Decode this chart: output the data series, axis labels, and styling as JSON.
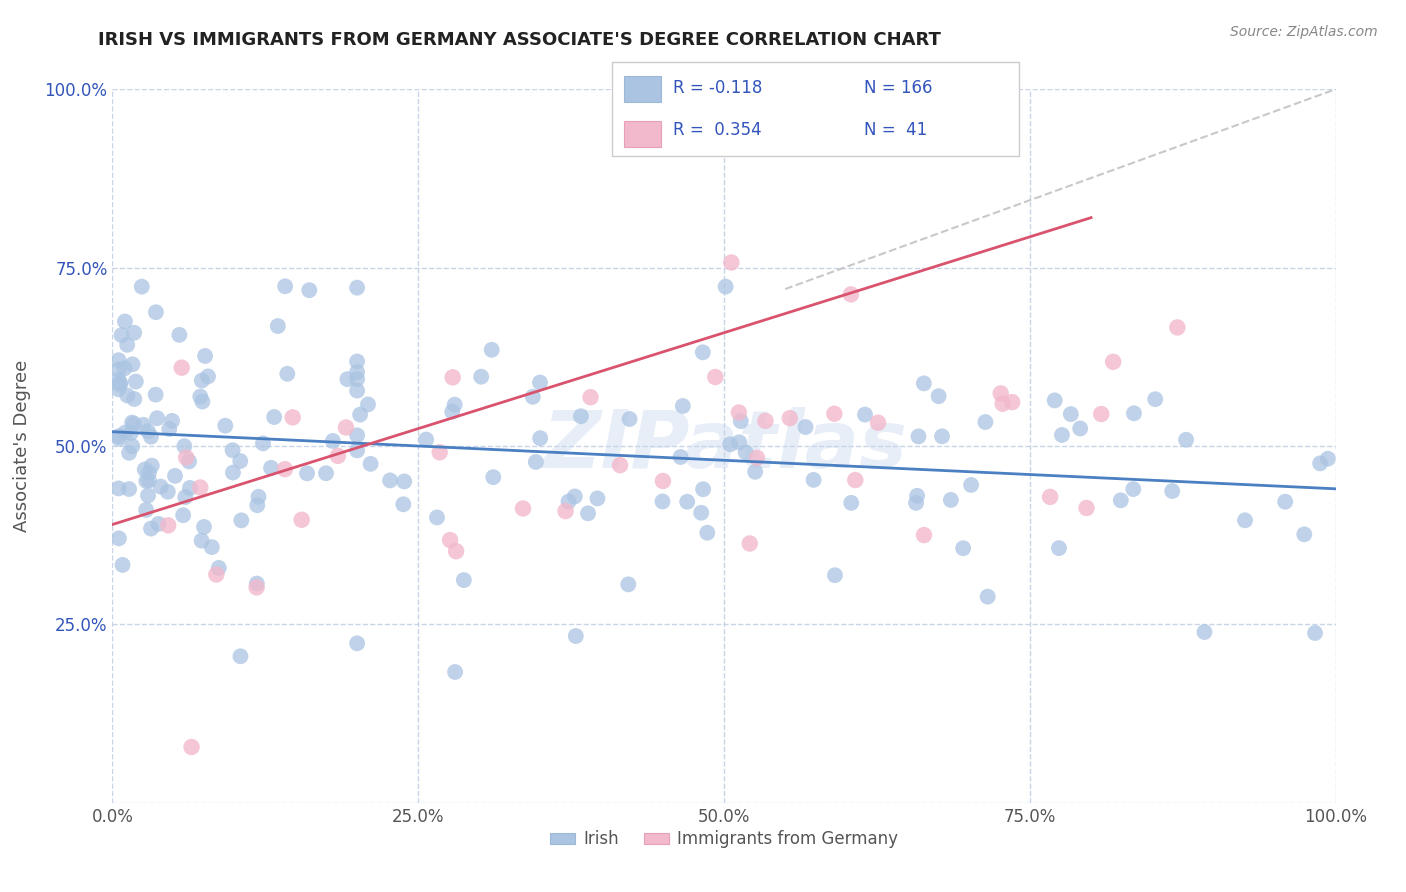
{
  "title": "IRISH VS IMMIGRANTS FROM GERMANY ASSOCIATE'S DEGREE CORRELATION CHART",
  "source": "Source: ZipAtlas.com",
  "ylabel": "Associate's Degree",
  "xticklabels": [
    "0.0%",
    "25.0%",
    "50.0%",
    "75.0%",
    "100.0%"
  ],
  "yticklabels": [
    "",
    "25.0%",
    "50.0%",
    "75.0%",
    "100.0%"
  ],
  "xticks": [
    0,
    25,
    50,
    75,
    100
  ],
  "yticks": [
    0,
    25,
    50,
    75,
    100
  ],
  "blue_color": "#aac4e2",
  "pink_color": "#f2b8cc",
  "blue_line_color": "#4a7fc1",
  "pink_line_color": "#d9536e",
  "background_color": "#ffffff",
  "grid_color": "#c8d4e8",
  "title_color": "#222222",
  "legend_color": "#3355bb",
  "watermark_color": "#d0dff0",
  "irish_r": -0.118,
  "german_r": 0.354,
  "irish_n": 166,
  "german_n": 41,
  "xlim": [
    0,
    100
  ],
  "ylim": [
    0,
    100
  ],
  "irish_blue_line": [
    0,
    100,
    52,
    44
  ],
  "german_pink_line": [
    0,
    80,
    39,
    82
  ],
  "german_dash_line": [
    55,
    100,
    72,
    100
  ]
}
